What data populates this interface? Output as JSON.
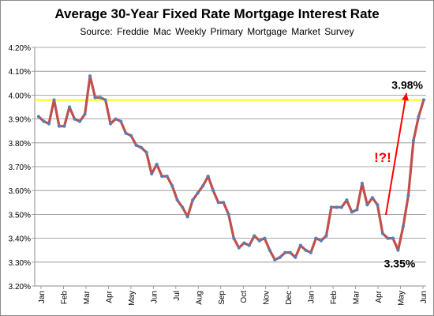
{
  "chart_data": {
    "type": "line",
    "title": "Average 30-Year Fixed Rate Mortgage Interest Rate",
    "subtitle": "Source:  Freddie  Mac  Weekly  Primary  Mortgage  Market  Survey",
    "xlabel": "",
    "ylabel": "",
    "ylim": [
      3.2,
      4.2
    ],
    "y_ticks": [
      "3.20%",
      "3.30%",
      "3.40%",
      "3.50%",
      "3.60%",
      "3.70%",
      "3.80%",
      "3.90%",
      "4.00%",
      "4.10%",
      "4.20%"
    ],
    "x_tick_labels": [
      "Jan",
      "Feb",
      "Mar",
      "Apr",
      "May",
      "Jun",
      "Jul",
      "Aug",
      "Sep",
      "Oct",
      "Nov",
      "Dec",
      "Jan",
      "Feb",
      "Mar",
      "Apr",
      "May",
      "Jun"
    ],
    "grid": "horizontal",
    "series": [
      {
        "values": [
          3.91,
          3.89,
          3.88,
          3.98,
          3.87,
          3.87,
          3.95,
          3.9,
          3.89,
          3.92,
          4.08,
          3.99,
          3.99,
          3.98,
          3.88,
          3.9,
          3.89,
          3.84,
          3.83,
          3.79,
          3.78,
          3.76,
          3.67,
          3.71,
          3.66,
          3.66,
          3.62,
          3.56,
          3.53,
          3.49,
          3.56,
          3.59,
          3.62,
          3.66,
          3.6,
          3.55,
          3.55,
          3.5,
          3.4,
          3.36,
          3.38,
          3.37,
          3.41,
          3.39,
          3.4,
          3.35,
          3.31,
          3.32,
          3.34,
          3.34,
          3.32,
          3.37,
          3.35,
          3.34,
          3.4,
          3.39,
          3.41,
          3.53,
          3.53,
          3.53,
          3.56,
          3.51,
          3.52,
          3.63,
          3.54,
          3.57,
          3.54,
          3.42,
          3.4,
          3.4,
          3.35,
          3.45,
          3.58,
          3.81,
          3.91,
          3.98
        ]
      }
    ],
    "reference_line": {
      "value": 3.98,
      "color": "#ffff00"
    },
    "annotations": [
      {
        "text": "3.98%",
        "attached_to": "last point"
      },
      {
        "text": "3.35%",
        "attached_to": "minimum near May"
      },
      {
        "text": "!?!",
        "color": "#ff0000"
      }
    ],
    "colors": {
      "line": "#c0504d",
      "markers": "#4f81bd",
      "arrow": "#ff0000"
    }
  }
}
